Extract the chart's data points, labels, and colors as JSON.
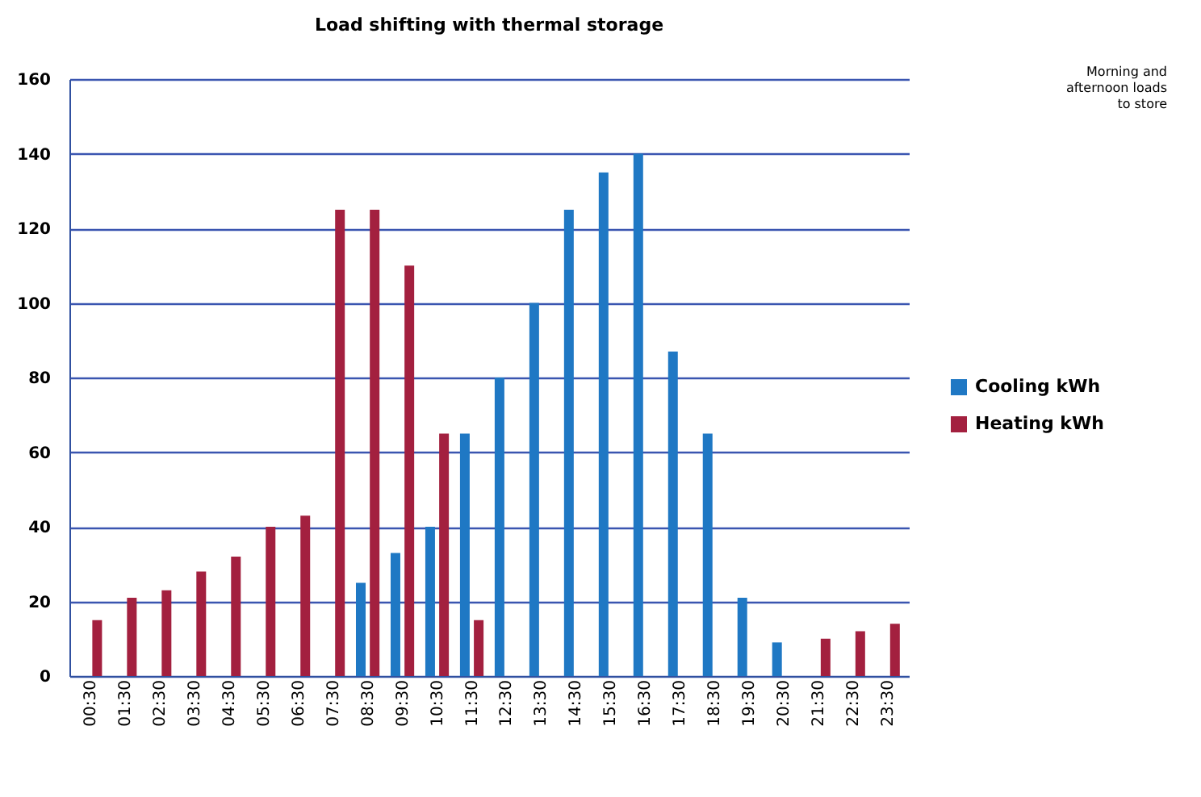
{
  "chart_data": {
    "type": "bar",
    "title": "Load shifting with thermal storage",
    "categories": [
      "00:30",
      "01:30",
      "02:30",
      "03:30",
      "04:30",
      "05:30",
      "06:30",
      "07:30",
      "08:30",
      "09:30",
      "10:30",
      "11:30",
      "12:30",
      "13:30",
      "14:30",
      "15:30",
      "16:30",
      "17:30",
      "18:30",
      "19:30",
      "20:30",
      "21:30",
      "22:30",
      "23:30"
    ],
    "series": [
      {
        "name": "Cooling kWh",
        "color": "#1f78c4",
        "values": [
          null,
          null,
          null,
          null,
          null,
          null,
          null,
          null,
          25,
          33,
          40,
          65,
          80,
          100,
          125,
          135,
          140,
          87,
          65,
          21,
          9,
          null,
          null,
          null
        ]
      },
      {
        "name": "Heating kWh",
        "color": "#a3203f",
        "values": [
          15,
          21,
          23,
          28,
          32,
          40,
          43,
          125,
          125,
          110,
          65,
          15,
          null,
          null,
          null,
          null,
          null,
          null,
          null,
          null,
          null,
          10,
          12,
          14
        ]
      }
    ],
    "ylim": [
      0,
      160
    ],
    "yticks": [
      0,
      20,
      40,
      60,
      80,
      100,
      120,
      140,
      160
    ],
    "grid": "y",
    "legend": "right",
    "annotations": [
      "Morning and\nafternoon loads\nto store"
    ]
  }
}
